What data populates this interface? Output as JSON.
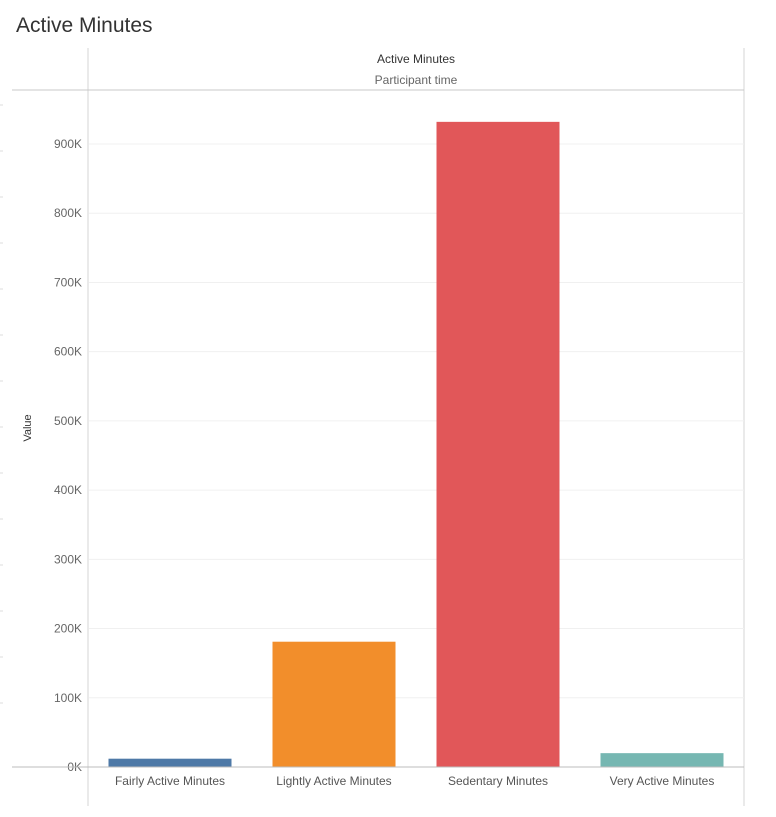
{
  "page": {
    "title": "Active Minutes",
    "column_header": "Active Minutes",
    "column_subheader": "Participant time"
  },
  "chart_data": {
    "type": "bar",
    "title": "Active Minutes",
    "xlabel": "",
    "ylabel": "Value",
    "categories": [
      "Fairly Active Minutes",
      "Lightly Active Minutes",
      "Sedentary Minutes",
      "Very Active Minutes"
    ],
    "values": [
      12000,
      181000,
      932000,
      20000
    ],
    "colors": [
      "#4e79a7",
      "#f28e2b",
      "#e15759",
      "#76b7b2"
    ],
    "ylim": [
      0,
      950000
    ],
    "yticks": [
      0,
      100000,
      200000,
      300000,
      400000,
      500000,
      600000,
      700000,
      800000,
      900000
    ],
    "ytick_labels": [
      "0K",
      "100K",
      "200K",
      "300K",
      "400K",
      "500K",
      "600K",
      "700K",
      "800K",
      "900K"
    ],
    "grid": true,
    "legend": "none"
  }
}
